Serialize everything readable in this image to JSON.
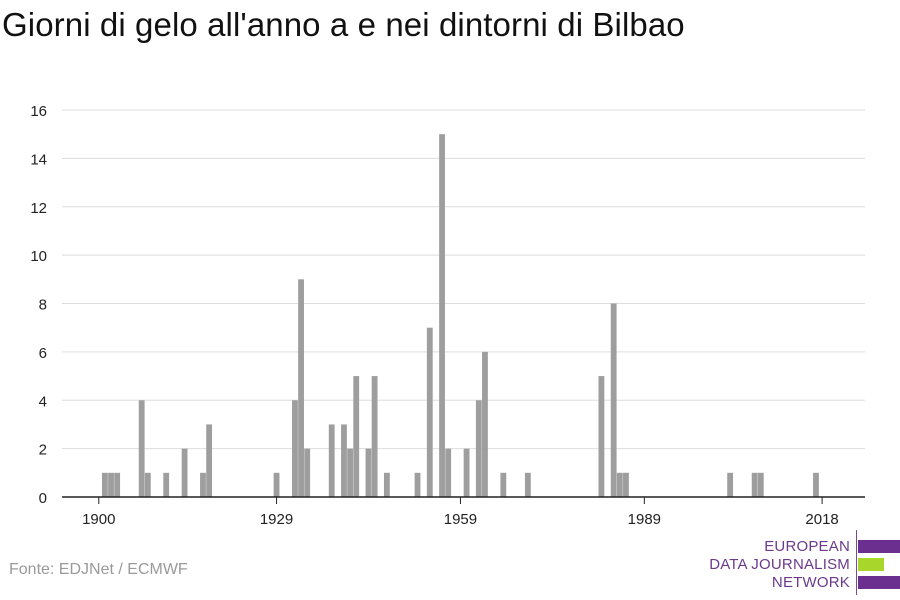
{
  "title": "Giorni di gelo all'anno a e nei dintorni di Bilbao",
  "source": "Fonte: EDJNet / ECMWF",
  "logo": {
    "line1": "EUROPEAN",
    "line2": "DATA JOURNALISM",
    "line3": "NETWORK",
    "colors": [
      "#6b2f8f",
      "#a8d62a",
      "#6b2f8f"
    ]
  },
  "colors": {
    "bar": "#9e9e9e",
    "grid": "#dddddd",
    "axis": "#222222",
    "text": "#222222"
  },
  "chart_data": {
    "type": "bar",
    "title": "Giorni di gelo all'anno a e nei dintorni di Bilbao",
    "xlabel": "",
    "ylabel": "",
    "xlim": [
      1894,
      2025
    ],
    "ylim": [
      0,
      16
    ],
    "x_ticks": [
      1900,
      1929,
      1959,
      1989,
      2018
    ],
    "y_ticks": [
      0,
      2,
      4,
      6,
      8,
      10,
      12,
      14,
      16
    ],
    "grid": true,
    "legend": "none",
    "x": [
      1901,
      1902,
      1903,
      1907,
      1908,
      1911,
      1914,
      1917,
      1918,
      1929,
      1932,
      1933,
      1934,
      1938,
      1940,
      1941,
      1942,
      1944,
      1945,
      1947,
      1952,
      1954,
      1956,
      1957,
      1960,
      1962,
      1963,
      1966,
      1970,
      1982,
      1984,
      1985,
      1986,
      2003,
      2007,
      2008,
      2017
    ],
    "values": [
      1,
      1,
      1,
      4,
      1,
      1,
      2,
      1,
      3,
      1,
      4,
      9,
      2,
      3,
      3,
      2,
      5,
      2,
      5,
      1,
      1,
      7,
      15,
      2,
      2,
      4,
      6,
      1,
      1,
      5,
      8,
      1,
      1,
      1,
      1,
      1,
      1
    ]
  }
}
